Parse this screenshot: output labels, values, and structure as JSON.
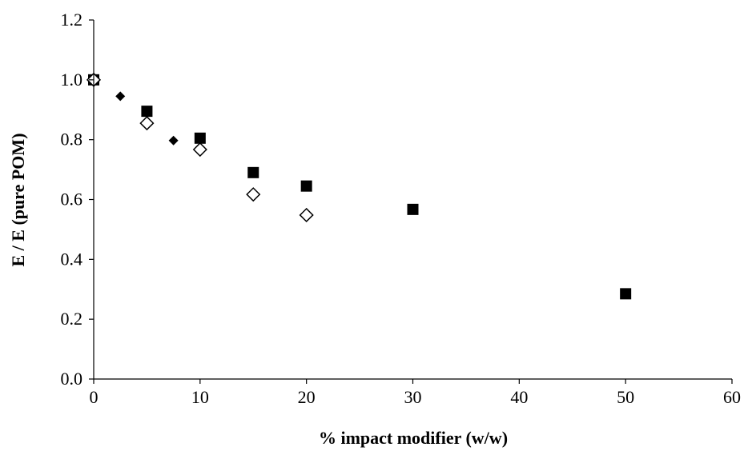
{
  "chart_data": {
    "type": "scatter",
    "xlabel": "% impact modifier (w/w)",
    "ylabel": "E / E (pure POM)",
    "xlim": [
      0,
      60
    ],
    "ylim": [
      0,
      1.2
    ],
    "x_ticks": [
      "0",
      "10",
      "20",
      "30",
      "40",
      "50",
      "60"
    ],
    "y_ticks": [
      "0.0",
      "0.2",
      "0.4",
      "0.6",
      "0.8",
      "1.0",
      "1.2"
    ],
    "grid": false,
    "legend": "none",
    "series": [
      {
        "marker": "filled-square",
        "color": "#000000",
        "points": [
          {
            "x": 0,
            "y": 1.0
          },
          {
            "x": 5,
            "y": 0.895
          },
          {
            "x": 10,
            "y": 0.805
          },
          {
            "x": 15,
            "y": 0.69
          },
          {
            "x": 20,
            "y": 0.645
          },
          {
            "x": 30,
            "y": 0.567
          },
          {
            "x": 50,
            "y": 0.285
          }
        ]
      },
      {
        "marker": "filled-diamond",
        "color": "#000000",
        "points": [
          {
            "x": 0,
            "y": 1.0
          },
          {
            "x": 2.5,
            "y": 0.945
          },
          {
            "x": 7.5,
            "y": 0.797
          },
          {
            "x": 10,
            "y": 0.775
          }
        ]
      },
      {
        "marker": "open-diamond",
        "color": "#000000",
        "points": [
          {
            "x": 0,
            "y": 1.0
          },
          {
            "x": 5,
            "y": 0.855
          },
          {
            "x": 10,
            "y": 0.767
          },
          {
            "x": 15,
            "y": 0.617
          },
          {
            "x": 20,
            "y": 0.548
          }
        ]
      }
    ]
  }
}
